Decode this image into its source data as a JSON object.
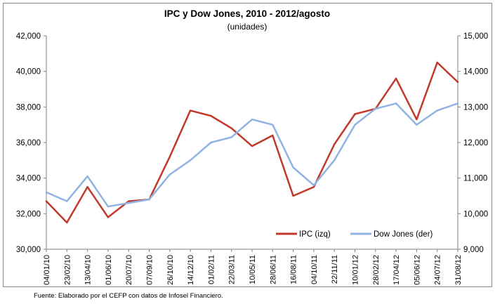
{
  "chart_data": {
    "type": "line",
    "title": "IPC y Dow Jones, 2010 - 2012/agosto",
    "subtitle": "(unidades)",
    "dual_axis": true,
    "y_left": {
      "min": 30000,
      "max": 42000,
      "ticks": [
        "30,000",
        "32,000",
        "34,000",
        "36,000",
        "38,000",
        "40,000",
        "42,000"
      ]
    },
    "y_right": {
      "min": 9000,
      "max": 15000,
      "ticks": [
        "9,000",
        "10,000",
        "11,000",
        "12,000",
        "13,000",
        "14,000",
        "15,000"
      ]
    },
    "x_tick_labels": [
      "04/01/10",
      "23/02/10",
      "13/04/10",
      "01/06/10",
      "20/07/10",
      "07/09/10",
      "26/10/10",
      "14/12/10",
      "01/02/11",
      "22/03/11",
      "10/05/11",
      "28/06/11",
      "16/08/11",
      "04/10/11",
      "22/11/11",
      "10/01/12",
      "28/02/12",
      "17/04/12",
      "05/06/12",
      "24/07/12",
      "31/08/12"
    ],
    "legend_position": "bottom-right",
    "grid": false,
    "series": [
      {
        "name": "IPC (izq)",
        "axis": "left",
        "color": "#c0392b",
        "x": [
          "04/01/10",
          "23/02/10",
          "13/04/10",
          "01/06/10",
          "20/07/10",
          "07/09/10",
          "26/10/10",
          "14/12/10",
          "01/02/11",
          "22/03/11",
          "10/05/11",
          "28/06/11",
          "16/08/11",
          "04/10/11",
          "22/11/11",
          "10/01/12",
          "28/02/12",
          "17/04/12",
          "05/06/12",
          "24/07/12",
          "31/08/12"
        ],
        "values": [
          32700,
          31500,
          33500,
          31800,
          32700,
          32800,
          35200,
          37800,
          37500,
          36800,
          35800,
          36400,
          33000,
          33500,
          35900,
          37600,
          37900,
          39600,
          37300,
          40500,
          39400
        ]
      },
      {
        "name": "Dow Jones (der)",
        "axis": "right",
        "color": "#8fb3e3",
        "x": [
          "04/01/10",
          "23/02/10",
          "13/04/10",
          "01/06/10",
          "20/07/10",
          "07/09/10",
          "26/10/10",
          "14/12/10",
          "01/02/11",
          "22/03/11",
          "10/05/11",
          "28/06/11",
          "16/08/11",
          "04/10/11",
          "22/11/11",
          "10/01/12",
          "28/02/12",
          "17/04/12",
          "05/06/12",
          "24/07/12",
          "31/08/12"
        ],
        "values": [
          10600,
          10350,
          11050,
          10200,
          10300,
          10400,
          11100,
          11500,
          12000,
          12150,
          12650,
          12500,
          11300,
          10800,
          11500,
          12500,
          12950,
          13100,
          12500,
          12900,
          13100
        ]
      }
    ]
  },
  "source": "Fuente:  Elaborado por el CEFP con datos de Infosel Financiero."
}
